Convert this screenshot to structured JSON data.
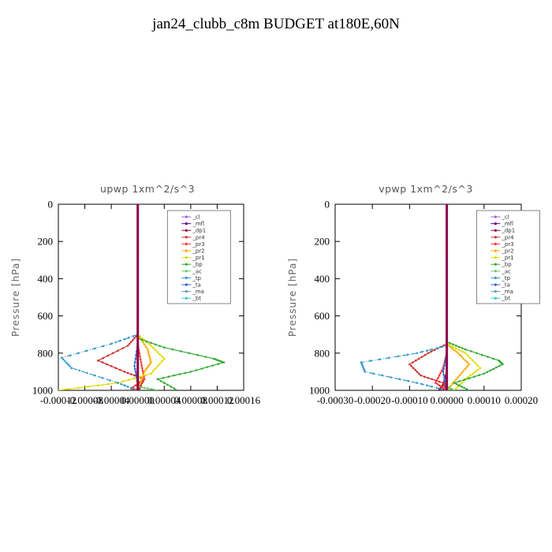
{
  "title": "jan24_clubb_c8m  BUDGET at180E,60N",
  "chart_data": [
    {
      "type": "line",
      "title": "upwp   1xm^2/s^3",
      "ylabel": "Pressure [hPa]",
      "ylim": [
        1000,
        0
      ],
      "yticks": [
        "0",
        "200",
        "400",
        "600",
        "800",
        "1000"
      ],
      "xlim": [
        -0.00012,
        0.00016
      ],
      "xticks": [
        "-0.00012",
        "-0.00008",
        "-0.00004",
        "0.00000",
        "0.00004",
        "0.00008",
        "0.00012",
        "0.00016"
      ],
      "legend_placement": "top-right",
      "series": [
        {
          "name": "_cl",
          "color": "#9966cc",
          "points": [
            [
              0,
              0
            ],
            [
              0,
              600
            ],
            [
              0,
              1000
            ]
          ]
        },
        {
          "name": "_mfl",
          "color": "#660099",
          "points": [
            [
              0,
              0
            ],
            [
              0,
              600
            ],
            [
              0,
              1000
            ]
          ]
        },
        {
          "name": "_dp1",
          "color": "#990033",
          "points": [
            [
              0,
              0
            ],
            [
              0,
              600
            ],
            [
              0,
              950
            ],
            [
              5e-06,
              980
            ],
            [
              0,
              1000
            ]
          ]
        },
        {
          "name": "_pr4",
          "color": "#cc3333",
          "points": [
            [
              0,
              0
            ],
            [
              0,
              700
            ],
            [
              -1.5e-05,
              760
            ],
            [
              -6e-05,
              840
            ],
            [
              -2e-05,
              900
            ],
            [
              1e-05,
              940
            ],
            [
              0,
              1000
            ]
          ]
        },
        {
          "name": "_pr3",
          "color": "#ff3333",
          "points": [
            [
              0,
              0
            ],
            [
              0,
              750
            ],
            [
              5e-06,
              850
            ],
            [
              1e-05,
              940
            ],
            [
              -1e-05,
              990
            ],
            [
              0,
              1000
            ]
          ]
        },
        {
          "name": "_pr2",
          "color": "#ffaa00",
          "points": [
            [
              0,
              0
            ],
            [
              0,
              700
            ],
            [
              1.5e-05,
              780
            ],
            [
              2e-05,
              850
            ],
            [
              1e-05,
              900
            ],
            [
              0,
              1000
            ]
          ]
        },
        {
          "name": "_pr1",
          "color": "#dddd00",
          "points": [
            [
              0,
              0
            ],
            [
              0,
              700
            ],
            [
              2e-05,
              760
            ],
            [
              4e-05,
              830
            ],
            [
              2e-05,
              910
            ],
            [
              -3e-05,
              960
            ],
            [
              -0.00012,
              1000
            ]
          ]
        },
        {
          "name": "_bp",
          "color": "#33aa33",
          "points": [
            [
              0,
              0
            ],
            [
              0,
              720
            ],
            [
              4e-05,
              770
            ],
            [
              0.000115,
              830
            ],
            [
              0.00013,
              850
            ],
            [
              8e-05,
              900
            ],
            [
              3e-05,
              940
            ],
            [
              6e-05,
              1000
            ]
          ]
        },
        {
          "name": "_ac",
          "color": "#66cc66",
          "points": [
            [
              0,
              0
            ],
            [
              0,
              980
            ],
            [
              3e-05,
              1000
            ]
          ]
        },
        {
          "name": "_tp",
          "color": "#3399cc",
          "points": [
            [
              0,
              0
            ],
            [
              0,
              700
            ],
            [
              -4e-05,
              750
            ],
            [
              -0.000115,
              825
            ],
            [
              -0.0001,
              880
            ],
            [
              -3e-05,
              960
            ],
            [
              0,
              1000
            ]
          ]
        },
        {
          "name": "_ta",
          "color": "#3366cc",
          "points": [
            [
              0,
              0
            ],
            [
              0,
              750
            ],
            [
              -5e-06,
              870
            ],
            [
              0,
              960
            ],
            [
              0,
              1000
            ]
          ]
        },
        {
          "name": "_ma",
          "color": "#6699cc",
          "points": [
            [
              0,
              0
            ],
            [
              0,
              1000
            ]
          ]
        },
        {
          "name": "_bt",
          "color": "#33cccc",
          "points": [
            [
              0,
              0
            ],
            [
              0,
              1000
            ]
          ]
        }
      ]
    },
    {
      "type": "line",
      "title": "vpwp   1xm^2/s^3",
      "ylabel": "Pressure [hPa]",
      "ylim": [
        1000,
        0
      ],
      "yticks": [
        "0",
        "200",
        "400",
        "600",
        "800",
        "1000"
      ],
      "xlim": [
        -0.0003,
        0.0002
      ],
      "xticks": [
        "-0.00030",
        "-0.00020",
        "-0.00010",
        "0.00000",
        "0.00010",
        "0.00020"
      ],
      "legend_placement": "top-right",
      "series": [
        {
          "name": "_cl",
          "color": "#9966cc",
          "points": [
            [
              0,
              0
            ],
            [
              0,
              600
            ],
            [
              0,
              1000
            ]
          ]
        },
        {
          "name": "_mfl",
          "color": "#660099",
          "points": [
            [
              0,
              0
            ],
            [
              0,
              600
            ],
            [
              0,
              1000
            ]
          ]
        },
        {
          "name": "_dp1",
          "color": "#990033",
          "points": [
            [
              0,
              0
            ],
            [
              0,
              900
            ],
            [
              -1e-05,
              970
            ],
            [
              -2e-05,
              995
            ],
            [
              0,
              1000
            ]
          ]
        },
        {
          "name": "_pr4",
          "color": "#cc3333",
          "points": [
            [
              0,
              0
            ],
            [
              0,
              750
            ],
            [
              -5e-05,
              800
            ],
            [
              -0.0001,
              860
            ],
            [
              -7e-05,
              920
            ],
            [
              -1e-05,
              960
            ],
            [
              0,
              1000
            ]
          ]
        },
        {
          "name": "_pr3",
          "color": "#ff3333",
          "points": [
            [
              0,
              0
            ],
            [
              0,
              800
            ],
            [
              -1e-05,
              880
            ],
            [
              -3e-05,
              960
            ],
            [
              0,
              1000
            ]
          ]
        },
        {
          "name": "_pr2",
          "color": "#ffaa00",
          "points": [
            [
              0,
              0
            ],
            [
              0,
              750
            ],
            [
              3e-05,
              800
            ],
            [
              6e-05,
              860
            ],
            [
              3e-05,
              930
            ],
            [
              0,
              1000
            ]
          ]
        },
        {
          "name": "_pr1",
          "color": "#dddd00",
          "points": [
            [
              0,
              0
            ],
            [
              0,
              750
            ],
            [
              5e-05,
              800
            ],
            [
              9e-05,
              880
            ],
            [
              5e-05,
              940
            ],
            [
              2e-05,
              1000
            ]
          ]
        },
        {
          "name": "_bp",
          "color": "#33aa33",
          "points": [
            [
              0,
              0
            ],
            [
              0,
              740
            ],
            [
              5e-05,
              780
            ],
            [
              0.00014,
              840
            ],
            [
              0.00015,
              860
            ],
            [
              0.0001,
              910
            ],
            [
              2e-05,
              960
            ],
            [
              6e-05,
              1000
            ]
          ]
        },
        {
          "name": "_ac",
          "color": "#66cc66",
          "points": [
            [
              0,
              0
            ],
            [
              0,
              980
            ],
            [
              2e-05,
              1000
            ]
          ]
        },
        {
          "name": "_tp",
          "color": "#3399cc",
          "points": [
            [
              0,
              0
            ],
            [
              0,
              760
            ],
            [
              -8e-05,
              800
            ],
            [
              -0.00023,
              850
            ],
            [
              -0.00022,
              900
            ],
            [
              -8e-05,
              960
            ],
            [
              0,
              1000
            ]
          ]
        },
        {
          "name": "_ta",
          "color": "#3366cc",
          "points": [
            [
              0,
              0
            ],
            [
              0,
              800
            ],
            [
              -1e-05,
              900
            ],
            [
              0,
              1000
            ]
          ]
        },
        {
          "name": "_ma",
          "color": "#6699cc",
          "points": [
            [
              0,
              0
            ],
            [
              0,
              1000
            ]
          ]
        },
        {
          "name": "_bt",
          "color": "#33cccc",
          "points": [
            [
              0,
              0
            ],
            [
              0,
              1000
            ]
          ]
        }
      ]
    }
  ]
}
